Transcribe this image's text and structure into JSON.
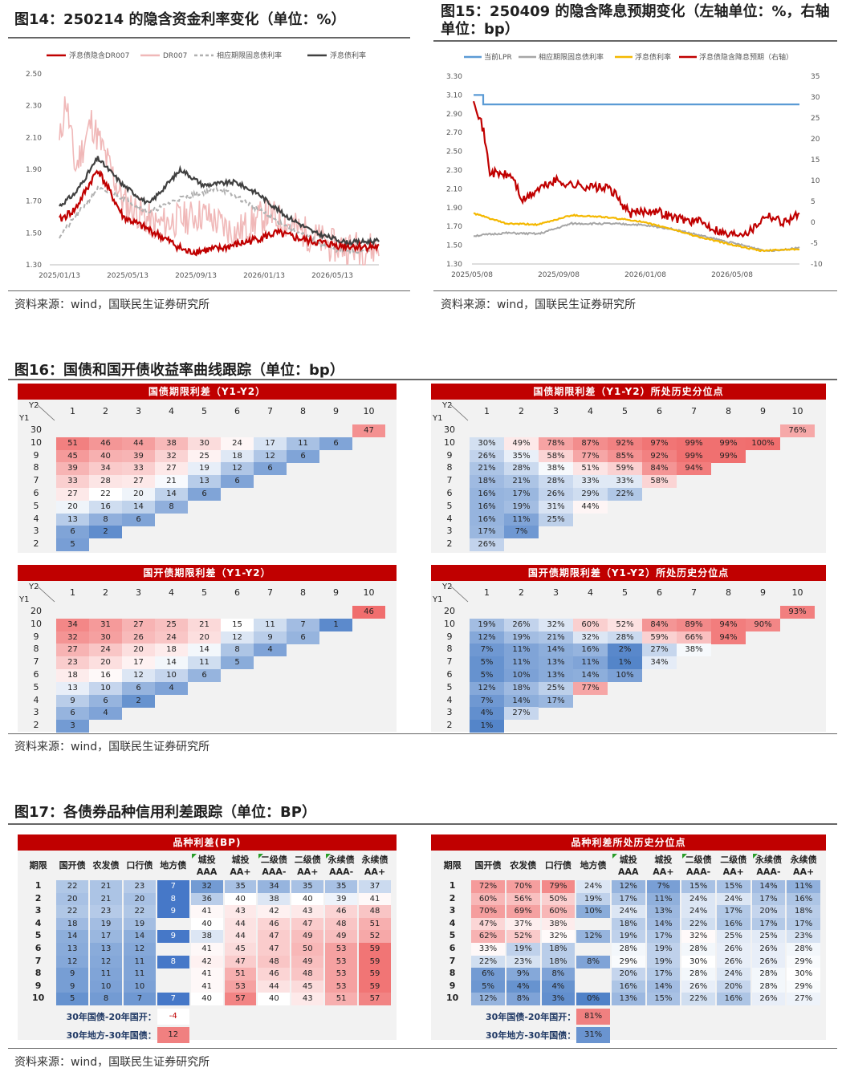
{
  "fig14": {
    "title": "图14：250214 的隐含资金利率变化（单位：%）",
    "source": "资料来源：wind，国联民生证券研究所",
    "legend": [
      "浮息债隐含DR007",
      "DR007",
      "相应期限固息债利率",
      "浮息债利率"
    ],
    "colors": [
      "#c00000",
      "#f0b8b8",
      "#b0b0b0",
      "#404040"
    ],
    "yticks": [
      "2.50",
      "2.30",
      "2.10",
      "1.90",
      "1.70",
      "1.50",
      "1.30"
    ],
    "xticks": [
      "2025/01/13",
      "2025/05/13",
      "2025/09/13",
      "2026/01/13",
      "2026/05/13"
    ]
  },
  "fig15": {
    "title": "图15：250409 的隐含降息预期变化（左轴单位：%，右轴单位：bp）",
    "source": "资料来源：wind，国联民生证券研究所",
    "legend": [
      "当前LPR",
      "相应期限固息债利率",
      "浮息债利率",
      "浮息债隐含降息预期（右轴）"
    ],
    "colors": [
      "#5b9bd5",
      "#a6a6a6",
      "#f4b800",
      "#c00000"
    ],
    "yticks": [
      "3.30",
      "3.10",
      "2.90",
      "2.70",
      "2.50",
      "2.30",
      "2.10",
      "1.90",
      "1.70",
      "1.50",
      "1.30"
    ],
    "y2ticks": [
      "35",
      "30",
      "25",
      "20",
      "15",
      "10",
      "5",
      "0",
      "-5",
      "-10"
    ],
    "xticks": [
      "2025/05/08",
      "2025/09/08",
      "2026/01/08",
      "2026/05/08"
    ]
  },
  "fig16": {
    "title": "图16：国债和国开债收益率曲线跟踪（单位：bp）",
    "source": "资料来源：wind，国联民生证券研究所",
    "t1": {
      "header": "国债期限利差（Y1-Y2）",
      "y1": [
        "30",
        "10",
        "9",
        "8",
        "7",
        "6",
        "5",
        "4",
        "3",
        "2"
      ],
      "rows": [
        [
          "",
          "",
          "",
          "",
          "",
          "",
          "",
          "",
          "",
          "47"
        ],
        [
          "51",
          "46",
          "44",
          "38",
          "30",
          "24",
          "17",
          "11",
          "6"
        ],
        [
          "45",
          "40",
          "39",
          "32",
          "25",
          "18",
          "12",
          "6"
        ],
        [
          "39",
          "34",
          "33",
          "27",
          "19",
          "12",
          "6"
        ],
        [
          "33",
          "28",
          "27",
          "21",
          "13",
          "6"
        ],
        [
          "27",
          "22",
          "20",
          "14",
          "6"
        ],
        [
          "20",
          "16",
          "14",
          "8"
        ],
        [
          "13",
          "8",
          "6"
        ],
        [
          "6",
          "2"
        ],
        [
          "5"
        ]
      ]
    },
    "t2": {
      "header": "国债期限利差（Y1-Y2）所处历史分位点",
      "y1": [
        "30",
        "10",
        "9",
        "8",
        "7",
        "6",
        "5",
        "4",
        "3",
        "2"
      ],
      "rows": [
        [
          "",
          "",
          "",
          "",
          "",
          "",
          "",
          "",
          "",
          "76%"
        ],
        [
          "30%",
          "49%",
          "78%",
          "87%",
          "92%",
          "97%",
          "99%",
          "99%",
          "100%"
        ],
        [
          "26%",
          "35%",
          "58%",
          "77%",
          "85%",
          "92%",
          "99%",
          "99%"
        ],
        [
          "21%",
          "28%",
          "38%",
          "51%",
          "59%",
          "84%",
          "94%"
        ],
        [
          "18%",
          "21%",
          "28%",
          "33%",
          "33%",
          "58%"
        ],
        [
          "16%",
          "17%",
          "26%",
          "29%",
          "22%"
        ],
        [
          "16%",
          "19%",
          "31%",
          "44%"
        ],
        [
          "16%",
          "11%",
          "25%"
        ],
        [
          "17%",
          "7%"
        ],
        [
          "26%"
        ]
      ]
    },
    "t3": {
      "header": "国开债期限利差（Y1-Y2）",
      "y1": [
        "20",
        "10",
        "9",
        "8",
        "7",
        "6",
        "5",
        "4",
        "3",
        "2"
      ],
      "rows": [
        [
          "",
          "",
          "",
          "",
          "",
          "",
          "",
          "",
          "",
          "46"
        ],
        [
          "34",
          "31",
          "27",
          "25",
          "21",
          "15",
          "11",
          "7",
          "1"
        ],
        [
          "32",
          "30",
          "26",
          "24",
          "20",
          "12",
          "9",
          "6"
        ],
        [
          "27",
          "24",
          "20",
          "18",
          "14",
          "8",
          "4"
        ],
        [
          "23",
          "20",
          "17",
          "14",
          "11",
          "5"
        ],
        [
          "18",
          "16",
          "12",
          "10",
          "6"
        ],
        [
          "13",
          "10",
          "6",
          "4"
        ],
        [
          "9",
          "6",
          "2"
        ],
        [
          "6",
          "4"
        ],
        [
          "3"
        ]
      ]
    },
    "t4": {
      "header": "国开债期限利差（Y1-Y2）所处历史分位点",
      "y1": [
        "20",
        "10",
        "9",
        "8",
        "7",
        "6",
        "5",
        "4",
        "3",
        "2"
      ],
      "rows": [
        [
          "",
          "",
          "",
          "",
          "",
          "",
          "",
          "",
          "",
          "93%"
        ],
        [
          "19%",
          "26%",
          "32%",
          "60%",
          "52%",
          "84%",
          "89%",
          "94%",
          "90%"
        ],
        [
          "12%",
          "19%",
          "21%",
          "32%",
          "28%",
          "59%",
          "66%",
          "94%"
        ],
        [
          "7%",
          "11%",
          "14%",
          "16%",
          "2%",
          "27%",
          "38%"
        ],
        [
          "5%",
          "11%",
          "13%",
          "11%",
          "1%",
          "34%"
        ],
        [
          "5%",
          "10%",
          "13%",
          "14%",
          "10%"
        ],
        [
          "12%",
          "18%",
          "25%",
          "77%"
        ],
        [
          "7%",
          "14%",
          "17%"
        ],
        [
          "4%",
          "27%"
        ],
        [
          "1%"
        ]
      ]
    },
    "colnums": [
      "1",
      "2",
      "3",
      "4",
      "5",
      "6",
      "7",
      "8",
      "9",
      "10"
    ],
    "y2": "Y2",
    "y1": "Y1"
  },
  "fig17": {
    "title": "图17：各债券品种信用利差跟踪（单位：BP）",
    "source": "资料来源：wind，国联民生证券研究所",
    "t1": {
      "header": "品种利差(BP)"
    },
    "t2": {
      "header": "品种利差所处历史分位点"
    },
    "cols": [
      [
        "期限",
        ""
      ],
      [
        "国开债",
        ""
      ],
      [
        "农发债",
        ""
      ],
      [
        "口行债",
        ""
      ],
      [
        "地方债",
        ""
      ],
      [
        "城投",
        "AAA"
      ],
      [
        "城投",
        "AA+"
      ],
      [
        "二级债",
        "AAA-"
      ],
      [
        "二级债",
        "AA+"
      ],
      [
        "永续债",
        "AAA-"
      ],
      [
        "永续债",
        "AA+"
      ]
    ],
    "terms": [
      "1",
      "2",
      "3",
      "4",
      "5",
      "6",
      "7",
      "8",
      "9",
      "10"
    ],
    "vals": [
      [
        "22",
        "21",
        "23",
        "7",
        "32",
        "35",
        "34",
        "35",
        "35",
        "37"
      ],
      [
        "20",
        "21",
        "20",
        "8",
        "36",
        "40",
        "38",
        "40",
        "39",
        "41"
      ],
      [
        "22",
        "23",
        "22",
        "9",
        "41",
        "43",
        "42",
        "43",
        "46",
        "48"
      ],
      [
        "18",
        "19",
        "19",
        "",
        "40",
        "44",
        "46",
        "47",
        "48",
        "51"
      ],
      [
        "14",
        "17",
        "14",
        "9",
        "38",
        "44",
        "47",
        "49",
        "49",
        "52"
      ],
      [
        "13",
        "13",
        "12",
        "",
        "41",
        "45",
        "47",
        "50",
        "53",
        "59"
      ],
      [
        "12",
        "12",
        "11",
        "8",
        "42",
        "47",
        "48",
        "49",
        "53",
        "59"
      ],
      [
        "9",
        "11",
        "11",
        "",
        "41",
        "51",
        "46",
        "48",
        "53",
        "59"
      ],
      [
        "9",
        "10",
        "10",
        "",
        "41",
        "53",
        "44",
        "45",
        "53",
        "59"
      ],
      [
        "5",
        "8",
        "7",
        "7",
        "40",
        "57",
        "40",
        "43",
        "51",
        "57"
      ]
    ],
    "pcts": [
      [
        "72%",
        "70%",
        "79%",
        "24%",
        "12%",
        "7%",
        "15%",
        "15%",
        "14%",
        "11%"
      ],
      [
        "60%",
        "56%",
        "50%",
        "19%",
        "17%",
        "11%",
        "24%",
        "24%",
        "17%",
        "16%"
      ],
      [
        "70%",
        "69%",
        "60%",
        "10%",
        "24%",
        "13%",
        "24%",
        "17%",
        "20%",
        "18%"
      ],
      [
        "47%",
        "37%",
        "38%",
        "",
        "18%",
        "14%",
        "22%",
        "16%",
        "17%",
        "17%"
      ],
      [
        "62%",
        "52%",
        "32%",
        "12%",
        "19%",
        "17%",
        "32%",
        "25%",
        "25%",
        "23%"
      ],
      [
        "33%",
        "19%",
        "18%",
        "",
        "28%",
        "19%",
        "28%",
        "26%",
        "26%",
        "28%"
      ],
      [
        "22%",
        "23%",
        "18%",
        "8%",
        "29%",
        "19%",
        "30%",
        "26%",
        "26%",
        "29%"
      ],
      [
        "6%",
        "9%",
        "8%",
        "",
        "20%",
        "17%",
        "28%",
        "24%",
        "28%",
        "30%"
      ],
      [
        "5%",
        "4%",
        "4%",
        "",
        "16%",
        "14%",
        "26%",
        "20%",
        "28%",
        "29%"
      ],
      [
        "12%",
        "8%",
        "3%",
        "0%",
        "13%",
        "15%",
        "22%",
        "16%",
        "26%",
        "27%"
      ]
    ],
    "extra1_label": "30年国债-20年国开：",
    "extra2_label": "30年地方-30年国债：",
    "extra_vals": [
      "-4",
      "12"
    ],
    "extra_pcts": [
      "81%",
      "31%"
    ]
  }
}
